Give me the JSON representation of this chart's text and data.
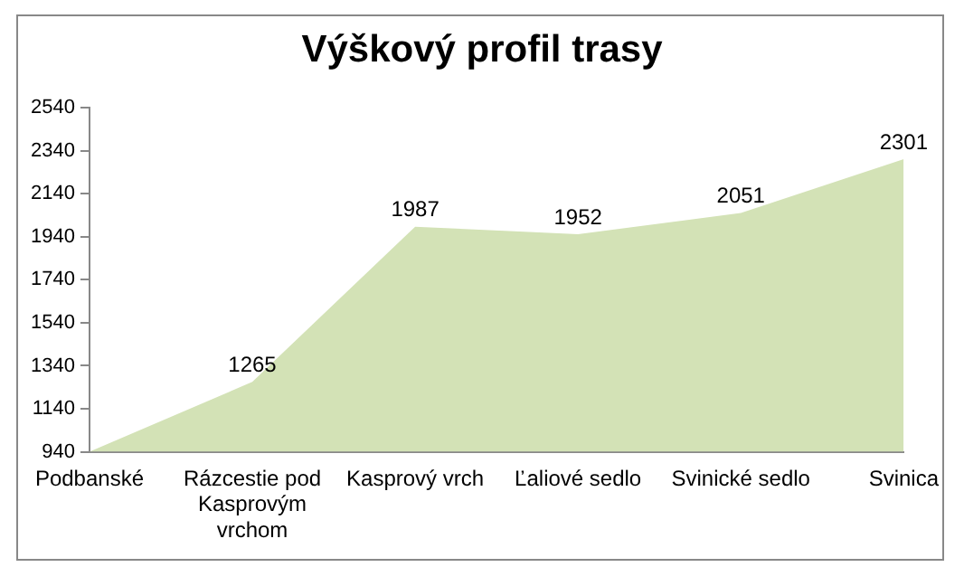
{
  "chart_data": {
    "type": "area",
    "title": "Výškový profil trasy",
    "categories": [
      "Podbanské",
      "Rázcestie pod Kasprovým vrchom",
      "Kasprový vrch",
      "Ľaliové sedlo",
      "Svinické sedlo",
      "Svinica"
    ],
    "values": [
      940,
      1265,
      1987,
      1952,
      2051,
      2301
    ],
    "value_labels": [
      null,
      "1265",
      "1987",
      "1952",
      "2051",
      "2301"
    ],
    "color": "#d3e2b6",
    "ylim": [
      940,
      2540
    ],
    "yticks": [
      940,
      1140,
      1340,
      1540,
      1740,
      1940,
      2140,
      2340,
      2540
    ],
    "grid": false,
    "legend": false
  }
}
